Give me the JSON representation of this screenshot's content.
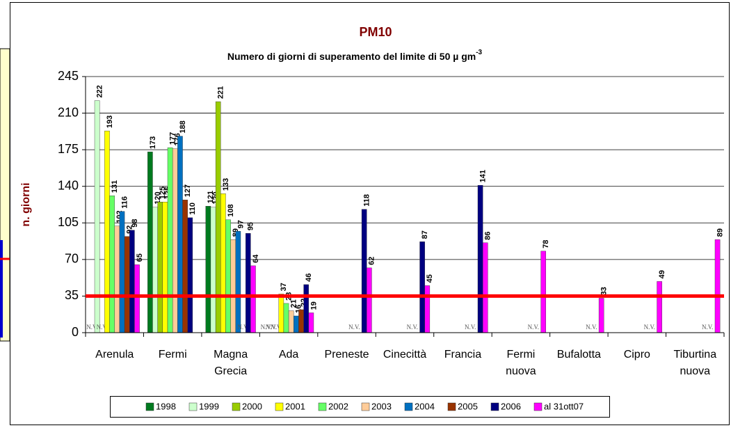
{
  "chart_data": {
    "type": "bar",
    "title": "PM10",
    "subtitle": "Numero di giorni di superamento del limite  di 50 µ gm",
    "subtitle_superscript": "-3",
    "ylabel": "n. giorni",
    "categories": [
      "Arenula",
      "Fermi",
      "Magna Grecia",
      "Ada",
      "Preneste",
      "Cinecittà",
      "Francia",
      "Fermi nuova",
      "Bufalotta",
      "Cipro",
      "Tiburtina nuova"
    ],
    "series": [
      {
        "name": "1998",
        "color": "#007a1f",
        "values": [
          null,
          173,
          121,
          null,
          null,
          null,
          null,
          null,
          null,
          null,
          null
        ],
        "value_labels": [
          "N.V.",
          "173",
          "121",
          "N.V.",
          null,
          null,
          null,
          null,
          null,
          null,
          null
        ]
      },
      {
        "name": "1999",
        "color": "#ccffcc",
        "values": [
          222,
          120,
          120,
          null,
          null,
          null,
          null,
          null,
          null,
          null,
          null
        ],
        "value_labels": [
          "222",
          "120",
          "120",
          "N.V.",
          null,
          null,
          null,
          null,
          null,
          null,
          null
        ]
      },
      {
        "name": "2000",
        "color": "#99cc00",
        "values": [
          null,
          125,
          221,
          null,
          null,
          null,
          null,
          null,
          null,
          null,
          null
        ],
        "value_labels": [
          "N.V.",
          "125",
          "221",
          "N.V.",
          null,
          null,
          null,
          null,
          null,
          null,
          null
        ]
      },
      {
        "name": "2001",
        "color": "#ffff00",
        "values": [
          193,
          125,
          133,
          37,
          null,
          null,
          null,
          null,
          null,
          null,
          null
        ],
        "value_labels": [
          "193",
          "125",
          "133",
          "37",
          null,
          null,
          null,
          null,
          null,
          null,
          null
        ]
      },
      {
        "name": "2002",
        "color": "#66ff66",
        "values": [
          131,
          177,
          108,
          28,
          null,
          null,
          null,
          null,
          null,
          null,
          null
        ],
        "value_labels": [
          "131",
          "177",
          "108",
          "28",
          null,
          null,
          null,
          null,
          null,
          null,
          null
        ]
      },
      {
        "name": "2003",
        "color": "#ffcc99",
        "values": [
          102,
          176,
          89,
          21,
          null,
          null,
          null,
          null,
          null,
          null,
          null
        ],
        "value_labels": [
          "102",
          "176",
          "89",
          "21",
          null,
          null,
          null,
          null,
          null,
          null,
          null
        ]
      },
      {
        "name": "2004",
        "color": "#0070c0",
        "values": [
          116,
          188,
          97,
          16,
          null,
          null,
          null,
          null,
          null,
          null,
          null
        ],
        "value_labels": [
          "116",
          "188",
          "97",
          "16",
          "N.V.",
          "N.V.",
          "N.V.",
          null,
          null,
          null,
          null
        ]
      },
      {
        "name": "2005",
        "color": "#993300",
        "values": [
          92,
          127,
          null,
          22,
          null,
          null,
          null,
          null,
          null,
          null,
          null
        ],
        "value_labels": [
          "92",
          "127",
          "N.V.",
          "22",
          null,
          null,
          null,
          "N.V.",
          "N.V.",
          "N.V.",
          "N.V."
        ]
      },
      {
        "name": "2006",
        "color": "#000080",
        "values": [
          98,
          110,
          95,
          46,
          118,
          87,
          141,
          null,
          null,
          null,
          null
        ],
        "value_labels": [
          "98",
          "110",
          "95",
          "46",
          "118",
          "87",
          "141",
          null,
          null,
          null,
          null
        ]
      },
      {
        "name": "al 31ott07",
        "color": "#ff00ff",
        "values": [
          65,
          null,
          64,
          19,
          62,
          45,
          86,
          78,
          33,
          49,
          89
        ],
        "value_labels": [
          "65",
          null,
          "64",
          "19",
          "62",
          "45",
          "86",
          "78",
          "33",
          "49",
          "89"
        ]
      }
    ],
    "ylim": [
      0,
      245
    ],
    "yticks": [
      0,
      35,
      70,
      105,
      140,
      175,
      210,
      245
    ],
    "grid": true,
    "reference_line": {
      "value": 35,
      "color": "#ff0000"
    },
    "legend": "bottom"
  }
}
